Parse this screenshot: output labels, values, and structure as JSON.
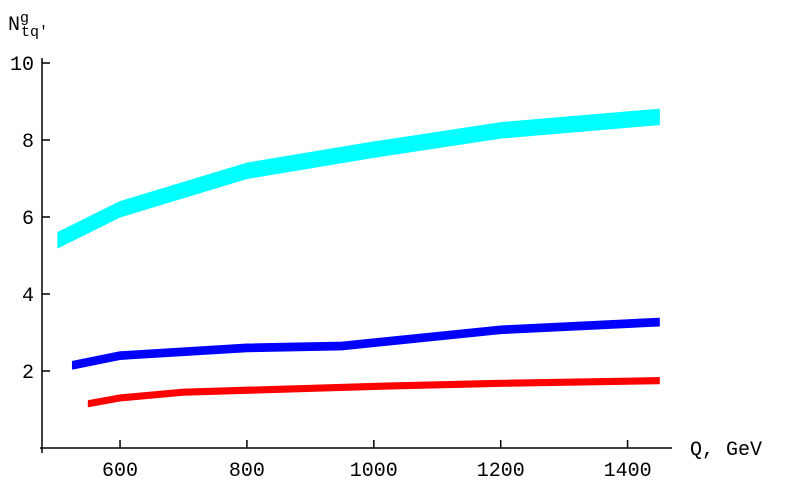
{
  "chart_data": {
    "type": "band",
    "y_label": {
      "base": "N",
      "sup": "g",
      "sub": "tq'"
    },
    "x_label": "Q, GeV",
    "xlim": [
      477,
      1470
    ],
    "xticks": [
      600,
      800,
      1000,
      1200,
      1400
    ],
    "ylim": [
      0,
      10
    ],
    "yticks": [
      2,
      4,
      6,
      8,
      10
    ],
    "series": [
      {
        "color": "#00ffff",
        "x": [
          502,
          600,
          800,
          1000,
          1200,
          1450
        ],
        "lower": [
          5.2,
          6.0,
          7.0,
          7.55,
          8.05,
          8.4
        ],
        "upper": [
          5.6,
          6.4,
          7.4,
          7.95,
          8.45,
          8.8
        ]
      },
      {
        "color": "#0000ff",
        "x": [
          525,
          600,
          800,
          950,
          1200,
          1450
        ],
        "lower": [
          2.05,
          2.3,
          2.5,
          2.55,
          2.97,
          3.17
        ],
        "upper": [
          2.25,
          2.5,
          2.7,
          2.75,
          3.17,
          3.37
        ]
      },
      {
        "color": "#ff0000",
        "x": [
          550,
          600,
          700,
          1000,
          1200,
          1450
        ],
        "lower": [
          1.07,
          1.22,
          1.37,
          1.52,
          1.6,
          1.67
        ],
        "upper": [
          1.23,
          1.38,
          1.53,
          1.68,
          1.76,
          1.83
        ]
      }
    ]
  }
}
